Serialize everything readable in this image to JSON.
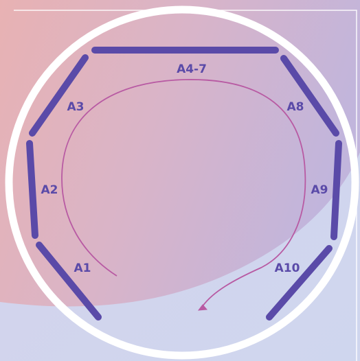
{
  "diagram": {
    "labels": {
      "a1": "A1",
      "a2": "A2",
      "a3": "A3",
      "a4_7": "A4-7",
      "a8": "A8",
      "a9": "A9",
      "a10": "A10"
    }
  },
  "colors": {
    "background_light": "#cfd2ea",
    "blob_pink": "#e7b0b4",
    "blob_purple": "#c7b6db",
    "ring_white": "#ffffff",
    "segment_purple": "#5a4aa8",
    "arrow_magenta": "#b85aa3"
  }
}
